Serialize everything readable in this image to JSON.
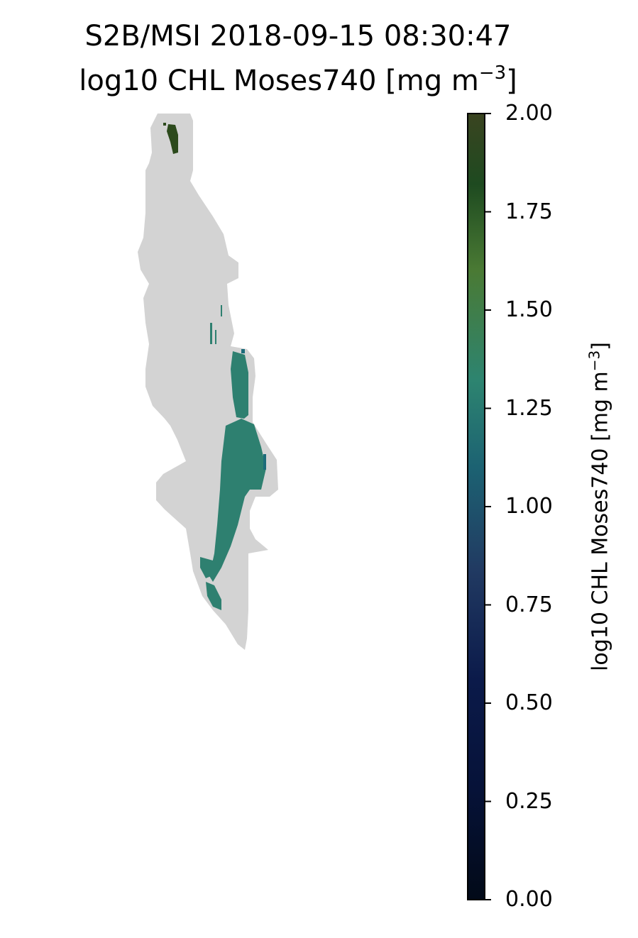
{
  "title": {
    "line1": "S2B/MSI 2018-09-15 08:30:47",
    "line2_prefix": "log10 CHL Moses740 [mg m",
    "line2_exponent": "−3",
    "line2_suffix": "]"
  },
  "colorbar": {
    "label_prefix": "log10 CHL Moses740 [mg m",
    "label_exponent": "−3",
    "label_suffix": "]",
    "min": 0.0,
    "max": 2.0,
    "ticks": [
      {
        "value": 0.0,
        "label": "0.00"
      },
      {
        "value": 0.25,
        "label": "0.25"
      },
      {
        "value": 0.5,
        "label": "0.50"
      },
      {
        "value": 0.75,
        "label": "0.75"
      },
      {
        "value": 1.0,
        "label": "1.00"
      },
      {
        "value": 1.25,
        "label": "1.25"
      },
      {
        "value": 1.5,
        "label": "1.50"
      },
      {
        "value": 1.75,
        "label": "1.75"
      },
      {
        "value": 2.0,
        "label": "2.00"
      }
    ],
    "colors": [
      "#020a18",
      "#0b1a4a",
      "#243f66",
      "#1c6c7a",
      "#2f8a70",
      "#4a7a34",
      "#1e4a20",
      "#3a4420"
    ]
  },
  "map": {
    "lake_mask_color": "#d3d3d3",
    "data_color_main": "#2e8070",
    "data_color_north": "#2c4a1c"
  }
}
